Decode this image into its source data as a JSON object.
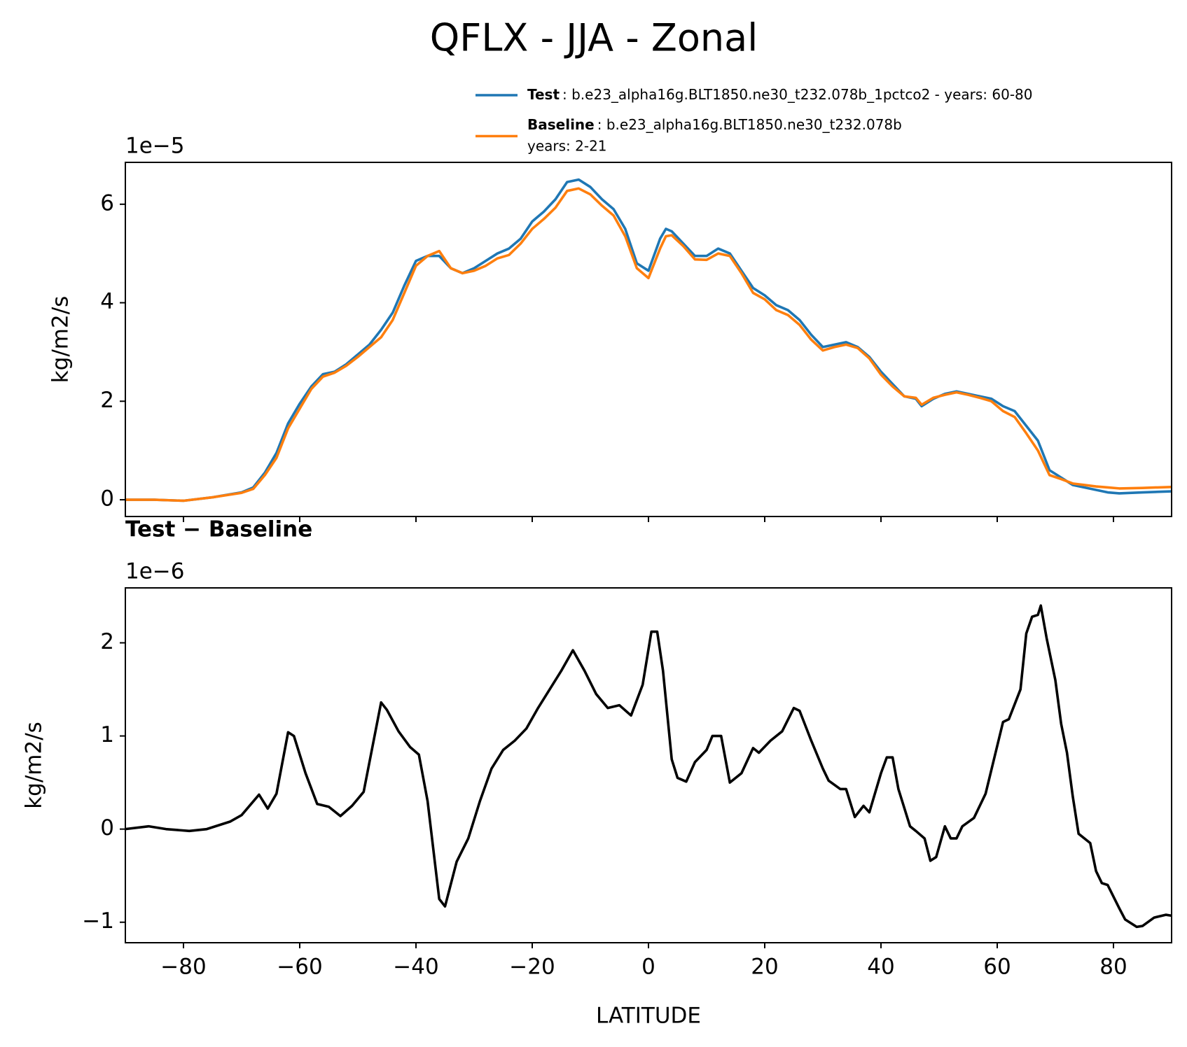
{
  "title": "QFLX - JJA - Zonal",
  "chart_data": [
    {
      "type": "line",
      "ylabel": "kg/m2/s",
      "offset_label": "1e−5",
      "xlim": [
        -90,
        90
      ],
      "ylim": [
        -0.34,
        6.85
      ],
      "xticks": [
        {
          "value": -80,
          "label": "−80"
        },
        {
          "value": -60,
          "label": "−60"
        },
        {
          "value": -40,
          "label": "−40"
        },
        {
          "value": -20,
          "label": "−20"
        },
        0,
        20,
        40,
        60,
        80
      ],
      "show_xtick_labels": false,
      "yticks": [
        0,
        2,
        4,
        6
      ],
      "legend": "outside upper right",
      "x": [
        -90,
        -85,
        -80,
        -75,
        -70,
        -68,
        -66,
        -64,
        -62,
        -60,
        -58,
        -56,
        -54,
        -52,
        -50,
        -48,
        -46,
        -44,
        -42,
        -40,
        -38,
        -36,
        -34,
        -32,
        -30,
        -28,
        -26,
        -24,
        -22,
        -20,
        -18,
        -16,
        -14,
        -12,
        -10,
        -8,
        -6,
        -4,
        -2,
        0,
        2,
        3,
        4,
        6,
        8,
        10,
        12,
        14,
        16,
        18,
        20,
        22,
        24,
        26,
        28,
        30,
        32,
        34,
        36,
        38,
        40,
        42,
        44,
        46,
        47,
        49,
        51,
        53,
        55,
        57,
        59,
        61,
        63,
        65,
        67,
        69,
        71,
        73,
        75,
        77,
        79,
        81,
        85,
        90
      ],
      "series": [
        {
          "name": "Test",
          "legend_lines": [
            ": b.e23_alpha16g.BLT1850.ne30_t232.078b_1pctco2 - years: 60-80"
          ],
          "color": "#1f77b4",
          "values": [
            0,
            0,
            -0.02,
            0.05,
            0.15,
            0.25,
            0.55,
            0.95,
            1.55,
            1.95,
            2.3,
            2.55,
            2.6,
            2.75,
            2.95,
            3.15,
            3.45,
            3.8,
            4.35,
            4.85,
            4.95,
            4.95,
            4.7,
            4.6,
            4.7,
            4.85,
            5.0,
            5.1,
            5.3,
            5.65,
            5.85,
            6.1,
            6.45,
            6.5,
            6.35,
            6.1,
            5.9,
            5.5,
            4.8,
            4.65,
            5.3,
            5.5,
            5.45,
            5.2,
            4.95,
            4.95,
            5.1,
            5.0,
            4.65,
            4.3,
            4.15,
            3.95,
            3.85,
            3.65,
            3.35,
            3.1,
            3.15,
            3.2,
            3.1,
            2.9,
            2.6,
            2.35,
            2.1,
            2.05,
            1.9,
            2.05,
            2.15,
            2.2,
            2.15,
            2.1,
            2.05,
            1.9,
            1.8,
            1.5,
            1.2,
            0.6,
            0.45,
            0.3,
            0.25,
            0.2,
            0.15,
            0.13,
            0.15,
            0.17
          ]
        },
        {
          "name": "Baseline",
          "legend_lines": [
            ": b.e23_alpha16g.BLT1850.ne30_t232.078b",
            "years: 2-21"
          ],
          "color": "#ff7f0e",
          "values": [
            0,
            0,
            -0.02,
            0.05,
            0.14,
            0.22,
            0.5,
            0.85,
            1.45,
            1.85,
            2.25,
            2.5,
            2.58,
            2.72,
            2.9,
            3.1,
            3.3,
            3.65,
            4.2,
            4.75,
            4.95,
            5.05,
            4.7,
            4.6,
            4.65,
            4.75,
            4.9,
            4.97,
            5.2,
            5.5,
            5.7,
            5.93,
            6.27,
            6.32,
            6.2,
            5.97,
            5.77,
            5.35,
            4.7,
            4.5,
            5.1,
            5.35,
            5.37,
            5.15,
            4.88,
            4.87,
            5.0,
            4.95,
            4.6,
            4.2,
            4.07,
            3.85,
            3.75,
            3.55,
            3.25,
            3.03,
            3.1,
            3.15,
            3.08,
            2.87,
            2.54,
            2.3,
            2.1,
            2.07,
            1.93,
            2.07,
            2.13,
            2.18,
            2.13,
            2.07,
            2.0,
            1.8,
            1.68,
            1.35,
            1.0,
            0.5,
            0.42,
            0.33,
            0.3,
            0.27,
            0.25,
            0.23,
            0.24,
            0.26
          ]
        }
      ]
    },
    {
      "type": "line",
      "title": "Test − Baseline",
      "ylabel": "kg/m2/s",
      "xlabel": "LATITUDE",
      "offset_label": "1e−6",
      "xlim": [
        -90,
        90
      ],
      "ylim": [
        -1.22,
        2.59
      ],
      "xticks": [
        {
          "value": -80,
          "label": "−80"
        },
        {
          "value": -60,
          "label": "−60"
        },
        {
          "value": -40,
          "label": "−40"
        },
        {
          "value": -20,
          "label": "−20"
        },
        0,
        20,
        40,
        60,
        80
      ],
      "yticks": [
        {
          "value": -1,
          "label": "−1"
        },
        0,
        1,
        2
      ],
      "color": "#000000",
      "x": [
        -90,
        -86,
        -83,
        -79,
        -76,
        -72,
        -70,
        -67,
        -65.5,
        -64,
        -62,
        -61,
        -59,
        -57,
        -55,
        -53,
        -51,
        -49,
        -46,
        -45,
        -43,
        -41,
        -39.5,
        -38,
        -36,
        -35,
        -33,
        -31,
        -29,
        -27,
        -25,
        -23,
        -21,
        -19,
        -17,
        -15,
        -13,
        -11,
        -9,
        -7,
        -5,
        -3,
        -1,
        0.5,
        1.5,
        2.5,
        4,
        5,
        6.5,
        8,
        10,
        11,
        12.5,
        14,
        16,
        18,
        19,
        21,
        23,
        25,
        26,
        28,
        30,
        31,
        33,
        34,
        35.5,
        37,
        38,
        40,
        41,
        42,
        43,
        45,
        46,
        47.5,
        48.5,
        49.5,
        51,
        52,
        53,
        54,
        56,
        58,
        61,
        62,
        64,
        65,
        66,
        67,
        67.5,
        68.5,
        70,
        71,
        72,
        73,
        74,
        76,
        77,
        78,
        79,
        81,
        82,
        84,
        85,
        87,
        89,
        90
      ],
      "values": [
        0.0,
        0.03,
        0.0,
        -0.02,
        0.0,
        0.08,
        0.15,
        0.37,
        0.22,
        0.38,
        1.04,
        1.0,
        0.6,
        0.27,
        0.24,
        0.14,
        0.25,
        0.4,
        1.36,
        1.28,
        1.05,
        0.88,
        0.8,
        0.3,
        -0.75,
        -0.83,
        -0.35,
        -0.1,
        0.3,
        0.65,
        0.85,
        0.95,
        1.08,
        1.3,
        1.5,
        1.7,
        1.92,
        1.7,
        1.45,
        1.3,
        1.33,
        1.22,
        1.55,
        2.12,
        2.12,
        1.7,
        0.75,
        0.55,
        0.51,
        0.72,
        0.85,
        1.0,
        1.0,
        0.5,
        0.6,
        0.87,
        0.82,
        0.95,
        1.05,
        1.3,
        1.27,
        0.95,
        0.65,
        0.52,
        0.43,
        0.43,
        0.13,
        0.25,
        0.18,
        0.6,
        0.77,
        0.77,
        0.43,
        0.03,
        -0.02,
        -0.1,
        -0.34,
        -0.3,
        0.03,
        -0.1,
        -0.1,
        0.03,
        0.12,
        0.38,
        1.15,
        1.18,
        1.5,
        2.1,
        2.28,
        2.3,
        2.4,
        2.05,
        1.6,
        1.13,
        0.82,
        0.35,
        -0.05,
        -0.15,
        -0.45,
        -0.58,
        -0.6,
        -0.85,
        -0.97,
        -1.05,
        -1.04,
        -0.95,
        -0.92,
        -0.93
      ]
    }
  ]
}
